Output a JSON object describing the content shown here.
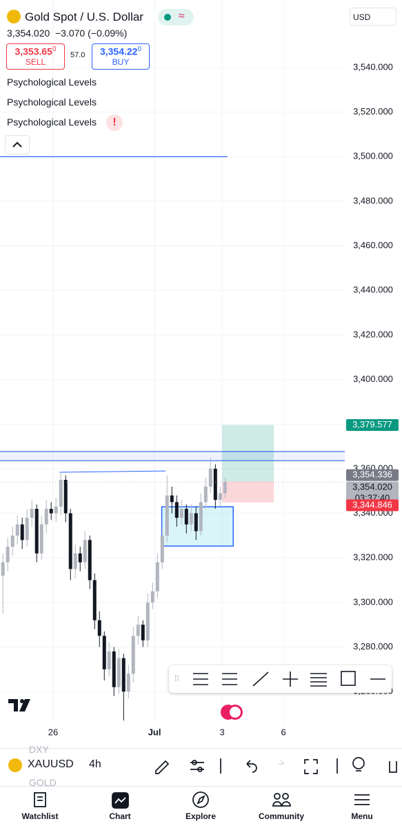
{
  "header": {
    "title": "Gold Spot / U.S. Dollar",
    "price": "3,354.020",
    "change": "−3.070 (−0.09%)",
    "sell_price": "3,353.65",
    "sell_digit": "0",
    "sell": "SELL",
    "spread": "57.0",
    "buy_price": "3,354.22",
    "buy_digit": "0",
    "buy": "BUY",
    "currency": "USD",
    "indicators": [
      "Psychological Levels",
      "Psychological Levels",
      "Psychological Levels"
    ],
    "warning": "!"
  },
  "chart_data": {
    "type": "candlestick",
    "open": [
      3312,
      3318,
      3325,
      3330,
      3335,
      3328,
      3338,
      3342,
      3322,
      3335,
      3342,
      3340,
      3343,
      3355,
      3340,
      3315,
      3322,
      3318,
      3328,
      3310,
      3292,
      3285,
      3270,
      3278,
      3262,
      3275,
      3260,
      3268,
      3285,
      3290,
      3283,
      3300,
      3305,
      3318,
      3330,
      3348,
      3345,
      3338,
      3342,
      3335,
      3340,
      3332,
      3345,
      3352,
      3360,
      3346,
      3349
    ],
    "high": [
      3322,
      3329,
      3334,
      3339,
      3338,
      3342,
      3346,
      3344,
      3339,
      3346,
      3345,
      3347,
      3358,
      3357,
      3342,
      3326,
      3325,
      3332,
      3330,
      3313,
      3296,
      3287,
      3282,
      3280,
      3279,
      3277,
      3272,
      3289,
      3294,
      3292,
      3304,
      3309,
      3322,
      3334,
      3357,
      3352,
      3348,
      3346,
      3344,
      3344,
      3343,
      3349,
      3356,
      3365,
      3362,
      3352,
      3356
    ],
    "low": [
      3295,
      3314,
      3321,
      3326,
      3324,
      3325,
      3334,
      3318,
      3319,
      3331,
      3337,
      3336,
      3339,
      3336,
      3310,
      3311,
      3314,
      3315,
      3306,
      3288,
      3280,
      3265,
      3267,
      3258,
      3259,
      3247,
      3257,
      3264,
      3281,
      3280,
      3280,
      3297,
      3302,
      3315,
      3327,
      3340,
      3334,
      3335,
      3331,
      3332,
      3328,
      3330,
      3342,
      3349,
      3342,
      3343,
      3347
    ],
    "close": [
      3318,
      3325,
      3330,
      3335,
      3328,
      3338,
      3342,
      3322,
      3335,
      3342,
      3340,
      3343,
      3355,
      3340,
      3315,
      3322,
      3318,
      3328,
      3310,
      3292,
      3285,
      3270,
      3278,
      3262,
      3275,
      3260,
      3268,
      3285,
      3290,
      3283,
      3300,
      3305,
      3318,
      3330,
      3348,
      3345,
      3338,
      3342,
      3335,
      3340,
      3332,
      3345,
      3352,
      3360,
      3346,
      3349,
      3354
    ],
    "up_color": "#b2b5be",
    "down_color": "#131722",
    "xlim": [
      -0.6,
      70.8
    ],
    "xticks": [
      {
        "value": 10.4,
        "label": "26"
      },
      {
        "value": 31.4,
        "label": "Jul"
      },
      {
        "value": 45.4,
        "label": "3"
      },
      {
        "value": 58.1,
        "label": "6"
      }
    ],
    "ylim": [
      3245.5,
      3570.3
    ],
    "yticks": [
      {
        "value": 3260,
        "label": "3,260.000"
      },
      {
        "value": 3280,
        "label": "3,280.000"
      },
      {
        "value": 3300,
        "label": "3,300.000"
      },
      {
        "value": 3320,
        "label": "3,320.000"
      },
      {
        "value": 3340,
        "label": "3,340.000"
      },
      {
        "value": 3360,
        "label": "3,360.000"
      },
      {
        "value": 3380,
        "label": "3,380.000"
      },
      {
        "value": 3400,
        "label": "3,400.000"
      },
      {
        "value": 3420,
        "label": "3,420.000"
      },
      {
        "value": 3440,
        "label": "3,440.000"
      },
      {
        "value": 3460,
        "label": "3,460.000"
      },
      {
        "value": 3480,
        "label": "3,480.000"
      },
      {
        "value": 3500,
        "label": "3,500.000"
      },
      {
        "value": 3520,
        "label": "3,520.000"
      },
      {
        "value": 3540,
        "label": "3,540.000"
      }
    ],
    "grid": true,
    "price_labels": [
      {
        "value": 3379.577,
        "label": "3,379.577",
        "color": "#089981"
      },
      {
        "value": 3354.336,
        "label": "3,354.336",
        "color": "#787b86"
      },
      {
        "value": 3354.02,
        "label": "3,354.020",
        "color": "#b2b5be"
      },
      {
        "value": 3344.846,
        "label": "3,344.846",
        "color": "#f23645"
      }
    ],
    "countdown": "03:37:40",
    "hlines": [
      {
        "value": 3500,
        "from": -0.6,
        "to": 46.5
      },
      {
        "value": 3367.7,
        "from": -0.6,
        "to": 70.8
      },
      {
        "value": 3363.6,
        "from": -0.6,
        "to": 70.8
      }
    ],
    "trendline": {
      "from": 11.7,
      "to": 33.7,
      "start": 3358.4,
      "end": 3359.0
    },
    "box": {
      "from": 32.9,
      "to": 47.7,
      "top": 3342.9,
      "bottom": 3325.3
    },
    "position": {
      "from": 45.4,
      "to": 56.1,
      "target": 3379.577,
      "entry": 3354.336,
      "stop": 3344.846
    }
  },
  "toolbar": {
    "symbol": "XAUUSD",
    "interval": "4h",
    "above": "DXY",
    "below": "GOLD"
  },
  "nav": [
    "Watchlist",
    "Chart",
    "Explore",
    "Community",
    "Menu"
  ]
}
